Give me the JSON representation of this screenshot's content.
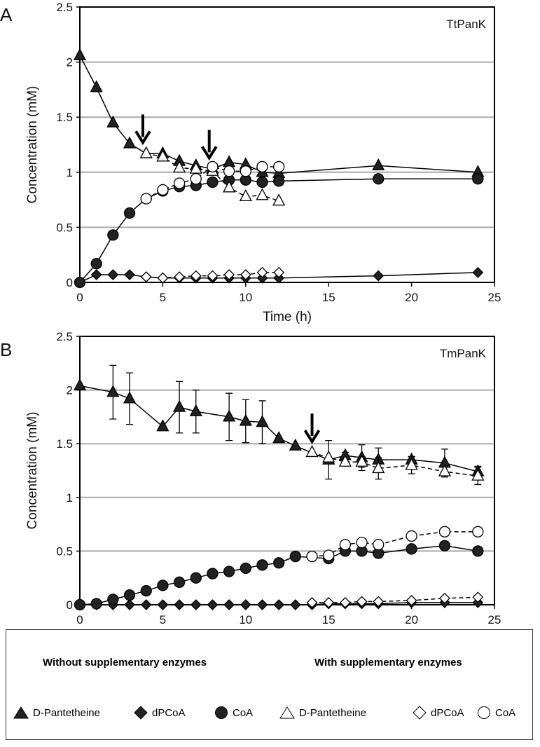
{
  "chart_data": [
    {
      "type": "line",
      "panel_label": "A",
      "title": "TtPanK",
      "xlabel": "Time (h)",
      "ylabel": "Concentration (mM)",
      "xlim": [
        0,
        25
      ],
      "ylim": [
        0,
        2.5
      ],
      "xticks": [
        "0",
        "5",
        "10",
        "15",
        "20",
        "25"
      ],
      "yticks": [
        "0",
        "0.5",
        "1",
        "1.5",
        "2",
        "2.5"
      ],
      "grid": "horizontal",
      "arrows_at_time": [
        3.8,
        7.8
      ],
      "series": [
        {
          "name": "D-Pantetheine (without)",
          "marker": "filled-triangle",
          "dash": false,
          "x": [
            0,
            1,
            2,
            3,
            4,
            5,
            6,
            7,
            8,
            9,
            10,
            11,
            12,
            18,
            24
          ],
          "y": [
            2.06,
            1.77,
            1.45,
            1.26,
            1.17,
            1.17,
            1.1,
            1.06,
            1.03,
            1.09,
            1.07,
            1.0,
            0.99,
            1.06,
            1.0
          ]
        },
        {
          "name": "dPCoA (without)",
          "marker": "filled-diamond",
          "dash": false,
          "x": [
            0,
            1,
            2,
            3,
            4,
            5,
            6,
            7,
            8,
            9,
            10,
            11,
            12,
            18,
            24
          ],
          "y": [
            0,
            0.07,
            0.07,
            0.07,
            0.05,
            0.04,
            0.04,
            0.04,
            0.04,
            0.04,
            0.04,
            0.04,
            0.04,
            0.06,
            0.09
          ]
        },
        {
          "name": "CoA (without)",
          "marker": "filled-circle",
          "dash": false,
          "x": [
            0,
            1,
            2,
            3,
            4,
            5,
            6,
            7,
            8,
            9,
            10,
            11,
            12,
            18,
            24
          ],
          "y": [
            0,
            0.17,
            0.43,
            0.63,
            0.76,
            0.83,
            0.87,
            0.88,
            0.91,
            0.93,
            0.93,
            0.91,
            0.92,
            0.94,
            0.94
          ]
        },
        {
          "name": "D-Pantetheine (with)",
          "marker": "open-triangle",
          "dash": true,
          "x": [
            4,
            5,
            6,
            7,
            8,
            9,
            10,
            11,
            12
          ],
          "y": [
            1.17,
            1.14,
            1.04,
            1.03,
            1.01,
            0.86,
            0.78,
            0.79,
            0.74
          ]
        },
        {
          "name": "dPCoA (with)",
          "marker": "open-diamond",
          "dash": true,
          "x": [
            4,
            5,
            6,
            7,
            8,
            9,
            10,
            11,
            12
          ],
          "y": [
            0.05,
            0.04,
            0.05,
            0.06,
            0.06,
            0.07,
            0.07,
            0.09,
            0.09
          ]
        },
        {
          "name": "CoA (with)",
          "marker": "open-circle",
          "dash": true,
          "x": [
            4,
            5,
            6,
            7,
            8,
            9,
            10,
            11,
            12
          ],
          "y": [
            0.76,
            0.84,
            0.9,
            0.94,
            1.05,
            1.01,
            1.01,
            1.05,
            1.05
          ]
        }
      ]
    },
    {
      "type": "line",
      "panel_label": "B",
      "title": "TmPanK",
      "xlabel": "Time (h)",
      "ylabel": "Concentration (mM)",
      "xlim": [
        0,
        25
      ],
      "ylim": [
        0,
        2.5
      ],
      "xticks": [
        "0",
        "5",
        "10",
        "15",
        "20",
        "25"
      ],
      "yticks": [
        "0",
        "0.5",
        "1",
        "1.5",
        "2",
        "2.5"
      ],
      "grid": "horizontal",
      "arrows_at_time": [
        14
      ],
      "series": [
        {
          "name": "D-Pantetheine (without)",
          "marker": "filled-triangle",
          "dash": false,
          "x": [
            0,
            2,
            3,
            5,
            6,
            7,
            9,
            10,
            11,
            12,
            13,
            15,
            16,
            17,
            18,
            20,
            22,
            24
          ],
          "y": [
            2.04,
            1.98,
            1.92,
            1.66,
            1.84,
            1.8,
            1.75,
            1.71,
            1.7,
            1.55,
            1.48,
            1.35,
            1.39,
            1.37,
            1.35,
            1.35,
            1.32,
            1.24
          ],
          "err": [
            0,
            0.25,
            0.24,
            0,
            0.24,
            0.2,
            0.22,
            0.2,
            0.2,
            0,
            0,
            0.18,
            0.03,
            0.12,
            0.11,
            0.03,
            0.13,
            0.05
          ]
        },
        {
          "name": "dPCoA (without)",
          "marker": "filled-diamond",
          "dash": false,
          "x": [
            0,
            1,
            2,
            3,
            4,
            5,
            6,
            7,
            8,
            9,
            10,
            11,
            12,
            13,
            14,
            15,
            16,
            17,
            18,
            20,
            22,
            24
          ],
          "y": [
            0,
            0,
            0,
            0,
            0,
            0,
            0,
            0,
            0,
            0,
            0,
            0,
            0,
            0,
            0,
            0.01,
            0.01,
            0.01,
            0.01,
            0.02,
            0.02,
            0.02
          ]
        },
        {
          "name": "CoA (without)",
          "marker": "filled-circle",
          "dash": false,
          "x": [
            0,
            1,
            2,
            3,
            4,
            5,
            6,
            7,
            8,
            9,
            10,
            11,
            12,
            13,
            15,
            16,
            17,
            18,
            20,
            22,
            24
          ],
          "y": [
            0,
            0.01,
            0.05,
            0.09,
            0.13,
            0.18,
            0.21,
            0.25,
            0.29,
            0.31,
            0.34,
            0.37,
            0.39,
            0.45,
            0.43,
            0.5,
            0.5,
            0.48,
            0.52,
            0.55,
            0.5
          ]
        },
        {
          "name": "D-Pantetheine (with)",
          "marker": "open-triangle",
          "dash": true,
          "x": [
            14,
            15,
            16,
            17,
            18,
            20,
            22,
            24
          ],
          "y": [
            1.42,
            1.37,
            1.33,
            1.33,
            1.27,
            1.3,
            1.24,
            1.2
          ],
          "err": [
            0,
            0,
            0,
            0.05,
            0.1,
            0.08,
            0,
            0.08
          ]
        },
        {
          "name": "dPCoA (with)",
          "marker": "open-diamond",
          "dash": true,
          "x": [
            14,
            15,
            16,
            17,
            18,
            20,
            22,
            24
          ],
          "y": [
            0.02,
            0.02,
            0.02,
            0.03,
            0.03,
            0.04,
            0.06,
            0.07
          ]
        },
        {
          "name": "CoA (with)",
          "marker": "open-circle",
          "dash": true,
          "x": [
            14,
            15,
            16,
            17,
            18,
            20,
            22,
            24
          ],
          "y": [
            0.45,
            0.46,
            0.56,
            0.58,
            0.56,
            0.64,
            0.68,
            0.68
          ]
        }
      ]
    }
  ],
  "legend": {
    "without_header": "Without supplementary enzymes",
    "with_header": "With supplementary enzymes",
    "items": [
      {
        "label_prefix": "D",
        "label": "-Pantetheine",
        "marker": "filled-triangle"
      },
      {
        "label": "dPCoA",
        "marker": "filled-diamond"
      },
      {
        "label": "CoA",
        "marker": "filled-circle"
      },
      {
        "label_prefix": "D",
        "label": "-Pantetheine",
        "marker": "open-triangle"
      },
      {
        "label": "dPCoA",
        "marker": "open-diamond"
      },
      {
        "label": "CoA",
        "marker": "open-circle"
      }
    ]
  }
}
